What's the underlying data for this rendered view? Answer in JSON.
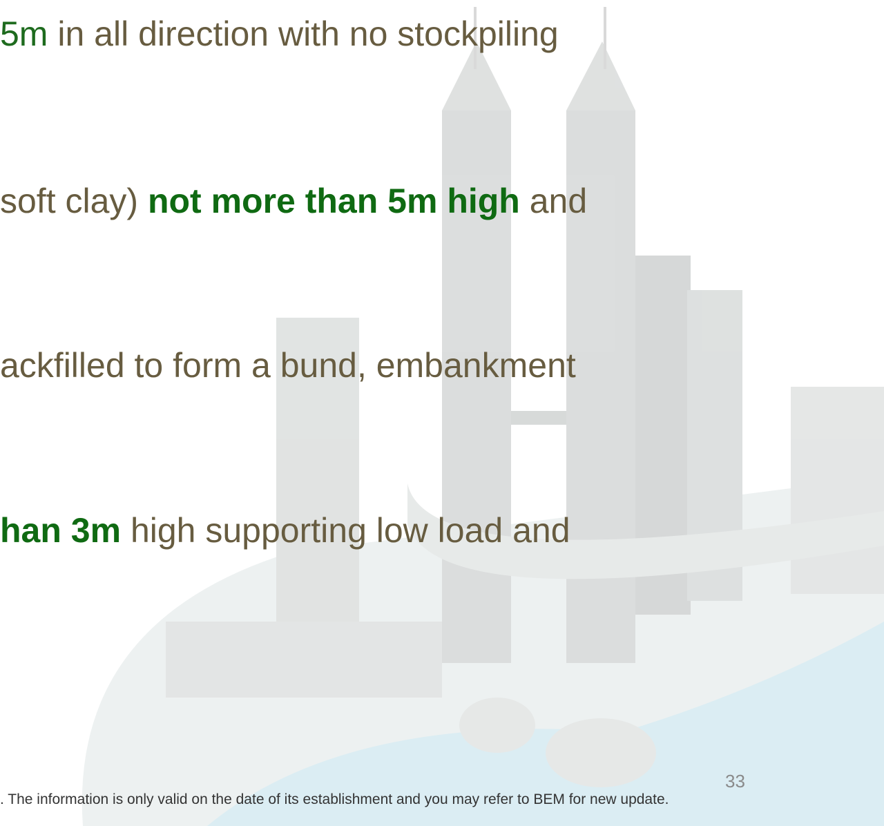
{
  "slide": {
    "lines": [
      [
        {
          "text": "5m",
          "color": "#1e6b1e",
          "bold": false
        },
        {
          "text": " in all direction with no stockpiling",
          "color": "#675c40",
          "bold": false
        }
      ],
      [
        {
          "text": "soft clay) ",
          "color": "#675c40",
          "bold": false
        },
        {
          "text": "not more than 5m high",
          "color": "#0f6a12",
          "bold": true
        },
        {
          "text": " and",
          "color": "#675c40",
          "bold": false
        }
      ],
      [
        {
          "text": "ackfilled to form a bund, embankment",
          "color": "#675c40",
          "bold": false
        }
      ],
      [
        {
          "text": "han 3m",
          "color": "#0f6a12",
          "bold": true
        },
        {
          "text": " high supporting low load and",
          "color": "#675c40",
          "bold": false
        }
      ]
    ],
    "page_number": "33",
    "footer": ". The information is only valid on the date of its establishment and you may refer to BEM for new update."
  }
}
